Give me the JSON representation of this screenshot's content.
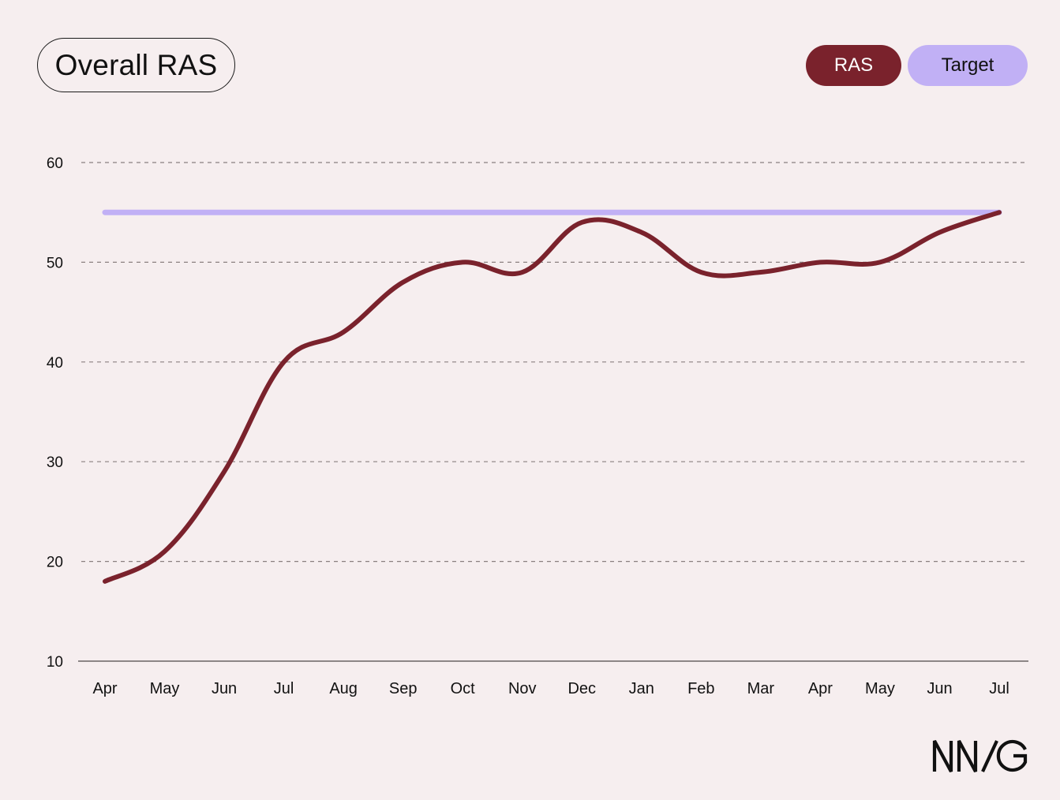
{
  "colors": {
    "background": "#f6eeef",
    "ras": "#7a222c",
    "target": "#c1b0f5",
    "grid": "#8a8080",
    "axis": "#8c8686",
    "text": "#111111"
  },
  "chart_data": {
    "type": "line",
    "title": "Overall RAS",
    "categories": [
      "Apr",
      "May",
      "Jun",
      "Jul",
      "Aug",
      "Sep",
      "Oct",
      "Nov",
      "Dec",
      "Jan",
      "Feb",
      "Mar",
      "Apr",
      "May",
      "Jun",
      "Jul"
    ],
    "series": [
      {
        "name": "RAS",
        "color": "#7a222c",
        "values": [
          18,
          21,
          29,
          40,
          43,
          48,
          50,
          49,
          54,
          53,
          49,
          49,
          50,
          50,
          53,
          55
        ]
      },
      {
        "name": "Target",
        "color": "#c1b0f5",
        "values": [
          55,
          55,
          55,
          55,
          55,
          55,
          55,
          55,
          55,
          55,
          55,
          55,
          55,
          55,
          55,
          55
        ]
      }
    ],
    "ylim": [
      10,
      60
    ],
    "yticks": [
      "10",
      "20",
      "30",
      "40",
      "50",
      "60"
    ],
    "grid": true,
    "legend_placement": "top-right",
    "xlabel": "",
    "ylabel": ""
  },
  "brand": {
    "logo_text": "NN/G"
  }
}
